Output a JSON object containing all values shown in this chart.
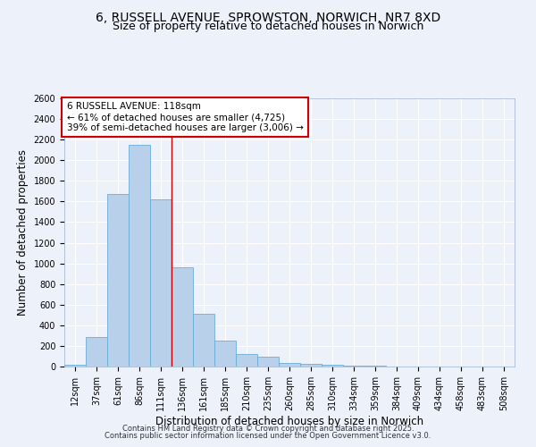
{
  "title_line1": "6, RUSSELL AVENUE, SPROWSTON, NORWICH, NR7 8XD",
  "title_line2": "Size of property relative to detached houses in Norwich",
  "xlabel": "Distribution of detached houses by size in Norwich",
  "ylabel": "Number of detached properties",
  "bar_labels": [
    "12sqm",
    "37sqm",
    "61sqm",
    "86sqm",
    "111sqm",
    "136sqm",
    "161sqm",
    "185sqm",
    "210sqm",
    "235sqm",
    "260sqm",
    "285sqm",
    "310sqm",
    "334sqm",
    "359sqm",
    "384sqm",
    "409sqm",
    "434sqm",
    "458sqm",
    "483sqm",
    "508sqm"
  ],
  "bar_values": [
    20,
    290,
    1670,
    2150,
    1620,
    960,
    510,
    250,
    120,
    95,
    35,
    30,
    18,
    10,
    5,
    2,
    1,
    1,
    0,
    0,
    0
  ],
  "bar_color": "#b8d0ea",
  "bar_edgecolor": "#6baed6",
  "vline_x_idx": 4,
  "vline_color": "#cc0000",
  "annotation_title": "6 RUSSELL AVENUE: 118sqm",
  "annotation_line2": "← 61% of detached houses are smaller (4,725)",
  "annotation_line3": "39% of semi-detached houses are larger (3,006) →",
  "annotation_box_edgecolor": "#cc0000",
  "ylim": [
    0,
    2600
  ],
  "yticks": [
    0,
    200,
    400,
    600,
    800,
    1000,
    1200,
    1400,
    1600,
    1800,
    2000,
    2200,
    2400,
    2600
  ],
  "footer_line1": "Contains HM Land Registry data © Crown copyright and database right 2025.",
  "footer_line2": "Contains public sector information licensed under the Open Government Licence v3.0.",
  "bg_color": "#edf2fa",
  "plot_bg_color": "#edf2fa",
  "grid_color": "#ffffff",
  "title_fontsize": 10,
  "subtitle_fontsize": 9,
  "axis_label_fontsize": 8.5,
  "tick_fontsize": 7,
  "annotation_fontsize": 7.5,
  "footer_fontsize": 6
}
